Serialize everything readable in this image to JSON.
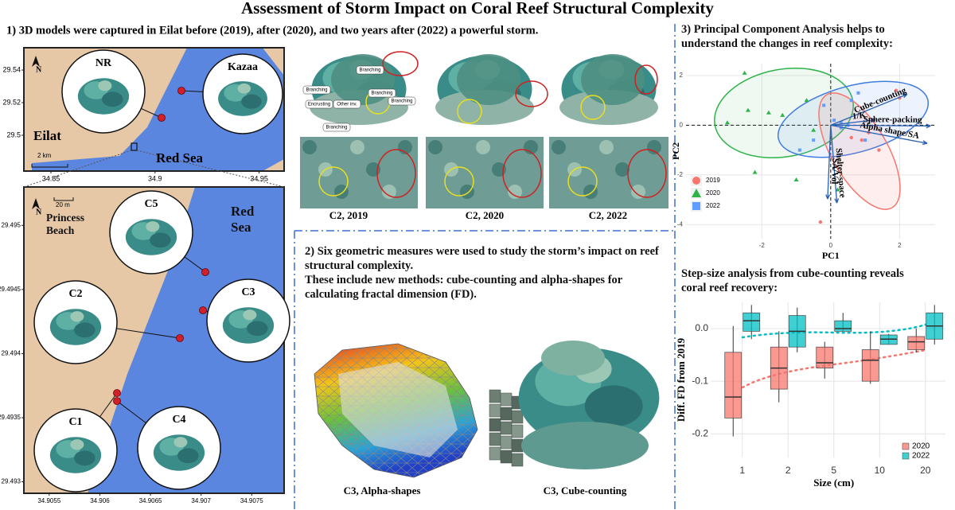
{
  "title": "Assessment of Storm Impact on Coral Reef Structural Complexity",
  "section1": {
    "heading": "1) 3D models were captured in Eilat before (2019), after (2020), and two years after (2022) a powerful storm.",
    "overview_map": {
      "sites": [
        "NR",
        "Kazaa"
      ],
      "town": "Eilat",
      "sea": "Red Sea",
      "scale": "2 km",
      "north": "N",
      "xlim": [
        34.837,
        34.962
      ],
      "ylim": [
        29.478,
        29.5537
      ],
      "xticks": [
        34.85,
        34.9,
        34.95
      ],
      "yticks": [
        29.5,
        29.52,
        29.54
      ]
    },
    "site_map": {
      "sites": [
        "C5",
        "C2",
        "C3",
        "C1",
        "C4"
      ],
      "beach": "Princess Beach",
      "sea": "Red Sea",
      "scale": "20 m",
      "north": "N",
      "xlim": [
        34.90525,
        34.90782
      ],
      "ylim": [
        29.49291,
        29.4953
      ],
      "xticks": [
        34.9055,
        34.906,
        34.9065,
        34.907,
        34.9075
      ],
      "yticks": [
        29.493,
        29.4935,
        29.494,
        29.4945,
        29.495
      ]
    },
    "photo_labels": [
      "Branching",
      "Branching",
      "Branching",
      "Encrusting",
      "Other inv.",
      "Branching",
      "Branching"
    ],
    "captions": [
      "C2, 2019",
      "C2, 2020",
      "C2, 2022"
    ]
  },
  "section2": {
    "heading": "2) Six geometric measures were used to study the storm’s impact on reef structural complexity.",
    "subheading": "These include new methods: cube-counting and alpha-shapes for calculating fractal dimension (FD).",
    "captions": [
      "C3, Alpha-shapes",
      "C3, Cube-counting"
    ]
  },
  "section3": {
    "heading": "3) Principal Component Analysis helps to understand the changes in reef complexity:"
  },
  "section4": {
    "heading": "Step-size analysis from cube-counting reveals coral reef recovery:"
  },
  "chart_data": [
    {
      "type": "scatter",
      "xlabel": "PC1",
      "ylabel": "PC2",
      "xlim": [
        -4.2,
        3.03
      ],
      "ylim": [
        -4.57,
        2.48
      ],
      "xticks": [
        -2,
        0,
        2
      ],
      "yticks": [
        -4,
        -2,
        0,
        2
      ],
      "grid": true,
      "legend": "bottom-left",
      "series": [
        {
          "name": "2019",
          "color": "#F8766D",
          "shape": "circle",
          "x": [
            1.9,
            2.0,
            1.1,
            0.6,
            0.9,
            1.4,
            -0.3
          ],
          "values": [
            1.4,
            1.1,
            -0.3,
            -0.5,
            -0.6,
            -1.0,
            -3.9
          ]
        },
        {
          "name": "2020",
          "color": "#2DB34A",
          "shape": "triangle",
          "x": [
            -2.5,
            -2.4,
            -1.8,
            -1.4,
            -0.7,
            -2.2,
            -3.0,
            -0.5,
            -1.0,
            0.2
          ],
          "values": [
            2.1,
            0.6,
            0.5,
            0.4,
            1.0,
            -1.9,
            0.1,
            -0.2,
            -2.2,
            -2.6
          ]
        },
        {
          "name": "2022",
          "color": "#619CFF",
          "shape": "square",
          "x": [
            0.1,
            0.3,
            0.5,
            0.3,
            -0.9,
            -0.5,
            0.6,
            0.8,
            1.0,
            -0.2
          ],
          "values": [
            0.2,
            0.1,
            0.0,
            -0.1,
            -1.0,
            -0.6,
            1.0,
            1.3,
            -0.6,
            0.8
          ]
        }
      ],
      "loadings": [
        {
          "name": "Cube-counting",
          "x": 2.22,
          "y": 1.25
        },
        {
          "name": "1/K",
          "x": 1.3,
          "y": 0.22
        },
        {
          "name": "Sphere-packing",
          "x": 2.9,
          "y": -0.03
        },
        {
          "name": "Alpha shape/SA",
          "x": 2.8,
          "y": -0.73
        },
        {
          "name": "Shelter-space",
          "x": 0.18,
          "y": -3.13
        },
        {
          "name": "SA/Vol",
          "x": -0.09,
          "y": -2.97
        }
      ]
    },
    {
      "type": "box",
      "xlabel": "Size (cm)",
      "ylabel": "Diff. FD from 2019",
      "categories": [
        "1",
        "2",
        "5",
        "10",
        "20"
      ],
      "ylim": [
        -0.245,
        0.05
      ],
      "yticks": [
        {
          "value": 0,
          "label": "0.0"
        },
        -0.1,
        -0.2
      ],
      "grid": true,
      "legend": "bottom-right",
      "series": [
        {
          "name": "2020",
          "color": "#F8766D",
          "min": [
            -0.205,
            -0.14,
            -0.095,
            -0.105,
            -0.045
          ],
          "q1": [
            -0.17,
            -0.115,
            -0.075,
            -0.1,
            -0.04
          ],
          "median": [
            -0.13,
            -0.075,
            -0.065,
            -0.06,
            -0.025
          ],
          "q3": [
            -0.045,
            -0.035,
            -0.035,
            -0.04,
            -0.015
          ],
          "max": [
            0.005,
            -0.005,
            -0.025,
            -0.005,
            0.0
          ]
        },
        {
          "name": "2022",
          "color": "#00BFC4",
          "min": [
            -0.02,
            -0.045,
            -0.005,
            -0.03,
            -0.03
          ],
          "q1": [
            -0.005,
            -0.035,
            -0.005,
            -0.03,
            -0.02
          ],
          "median": [
            0.015,
            -0.005,
            0.0,
            -0.02,
            0.005
          ],
          "q3": [
            0.03,
            0.025,
            0.015,
            -0.012,
            0.03
          ],
          "max": [
            0.045,
            0.04,
            0.03,
            -0.01,
            0.045
          ]
        }
      ]
    }
  ]
}
